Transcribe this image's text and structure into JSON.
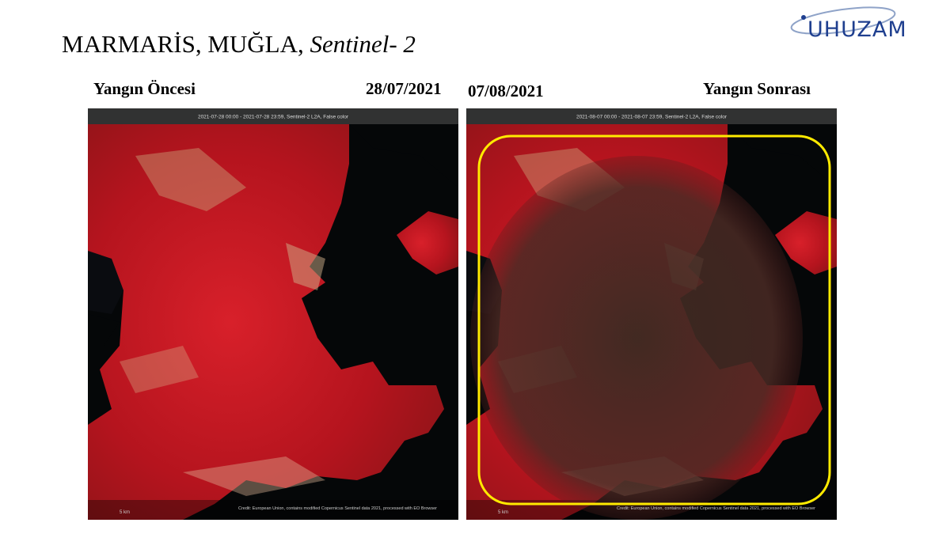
{
  "header": {
    "title": "MARMARİS, MUĞLA,",
    "title_italic": "Sentinel- 2",
    "logo": "UHUZAM"
  },
  "panels": [
    {
      "label": "Yangın Öncesi",
      "date": "28/07/2021",
      "caption": "2021-07-28 00:00 - 2021-07-28 23:59, Sentinel-2 L2A, False color",
      "scale": "5 km",
      "credit": "Credit: European Union, contains modified Copernicus Sentinel data 2021, processed with EO Browser"
    },
    {
      "label": "Yangın Sonrası",
      "date": "07/08/2021",
      "caption": "2021-08-07 00:00 - 2021-08-07 23:59, Sentinel-2 L2A, False color",
      "scale": "5 km",
      "credit": "Credit: European Union, contains modified Copernicus Sentinel data 2021, processed with EO Browser"
    }
  ]
}
